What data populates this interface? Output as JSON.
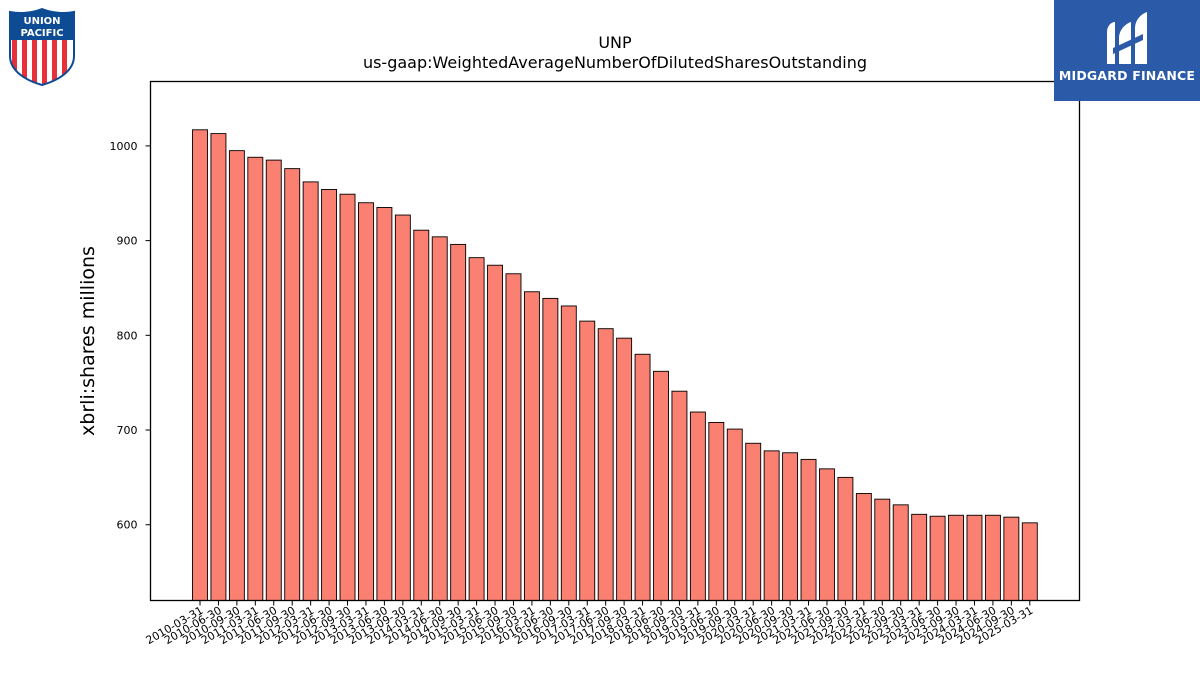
{
  "logos": {
    "left": {
      "line1": "UNION",
      "line2": "PACIFIC",
      "icon": "union-pacific-shield-logo"
    },
    "right": {
      "text": "MIDGARD FINANCE",
      "icon": "midgard-finance-logo",
      "bg": "#2b5aa8"
    }
  },
  "chart_data": {
    "type": "bar",
    "title": "UNP",
    "subtitle": "us-gaap:WeightedAverageNumberOfDilutedSharesOutstanding",
    "xlabel": "",
    "ylabel": "xbrli:shares millions",
    "ylim": [
      520,
      1068
    ],
    "yticks": [
      600,
      700,
      800,
      900,
      1000
    ],
    "bar_color": "#fa8072",
    "bar_edge": "#000000",
    "grid": false,
    "categories": [
      "2010-03-31",
      "2010-06-30",
      "2010-09-30",
      "2011-03-31",
      "2011-06-30",
      "2011-09-30",
      "2012-03-31",
      "2012-06-30",
      "2012-09-30",
      "2013-03-31",
      "2013-06-30",
      "2013-09-30",
      "2014-03-31",
      "2014-06-30",
      "2014-09-30",
      "2015-03-31",
      "2015-06-30",
      "2015-09-30",
      "2016-03-31",
      "2016-06-30",
      "2016-09-30",
      "2017-03-31",
      "2017-06-30",
      "2017-09-30",
      "2018-03-31",
      "2018-06-30",
      "2018-09-30",
      "2019-03-31",
      "2019-06-30",
      "2019-09-30",
      "2020-03-31",
      "2020-06-30",
      "2020-09-30",
      "2021-03-31",
      "2021-06-30",
      "2021-09-30",
      "2022-03-31",
      "2022-06-30",
      "2022-09-30",
      "2023-03-31",
      "2023-06-30",
      "2023-09-30",
      "2024-03-31",
      "2024-06-30",
      "2024-09-30",
      "2025-03-31"
    ],
    "values": [
      1017,
      1013,
      995,
      988,
      985,
      976,
      962,
      954,
      949,
      940,
      935,
      927,
      911,
      904,
      896,
      882,
      874,
      865,
      846,
      839,
      831,
      815,
      807,
      797,
      780,
      762,
      741,
      719,
      708,
      701,
      686,
      678,
      676,
      669,
      659,
      650,
      633,
      627,
      621,
      611,
      609,
      610,
      610,
      610,
      608,
      602
    ]
  }
}
